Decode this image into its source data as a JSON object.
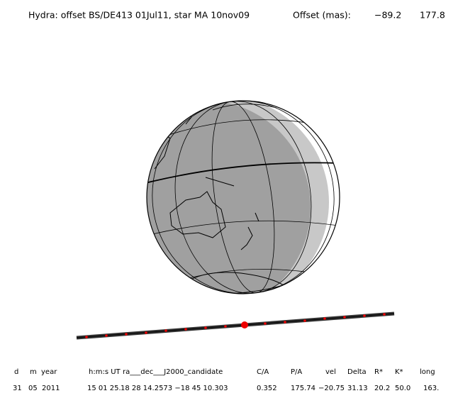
{
  "header": {
    "title": "Hydra: offset BS/DE413 01Jul11, star MA 10nov09",
    "offset_label": "Offset (mas):",
    "offset_values": [
      "−89.2",
      "177.8"
    ]
  },
  "table": {
    "headers": [
      "d",
      "m",
      "year",
      "h:m:s UT",
      "ra___dec___J2000_candidate",
      "C/A",
      "P/A",
      "vel",
      "Delta",
      "R*",
      "K*",
      "long"
    ],
    "rows": [
      [
        "31",
        "05",
        "2011",
        "15 01 25.",
        "18 28 14.2573 −18 45 10.303",
        "0.352",
        "175.74",
        "−20.75",
        "31.13",
        "20.2",
        "50.0",
        "163."
      ]
    ]
  }
}
